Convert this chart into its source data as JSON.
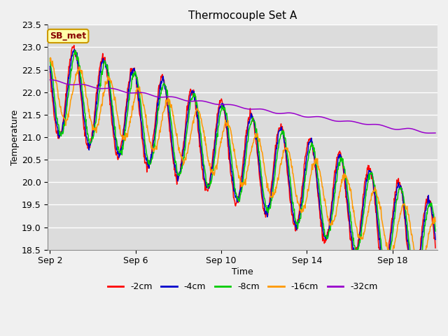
{
  "title": "Thermocouple Set A",
  "xlabel": "Time",
  "ylabel": "Temperature",
  "ylim": [
    18.5,
    23.5
  ],
  "fig_bg_color": "#f0f0f0",
  "plot_bg_color": "#dcdcdc",
  "grid_color": "#ffffff",
  "annotation_text": "SB_met",
  "annotation_bg": "#ffffaa",
  "annotation_border": "#cc9900",
  "series": [
    "-2cm",
    "-4cm",
    "-8cm",
    "-16cm",
    "-32cm"
  ],
  "colors": [
    "#ff0000",
    "#0000cc",
    "#00cc00",
    "#ff9900",
    "#9900cc"
  ],
  "x_ticks": [
    "Sep 2",
    "Sep 6",
    "Sep 10",
    "Sep 14",
    "Sep 18"
  ],
  "x_tick_positions": [
    2,
    6,
    10,
    14,
    18
  ],
  "start_day": 2,
  "end_day": 20,
  "n_points": 900
}
